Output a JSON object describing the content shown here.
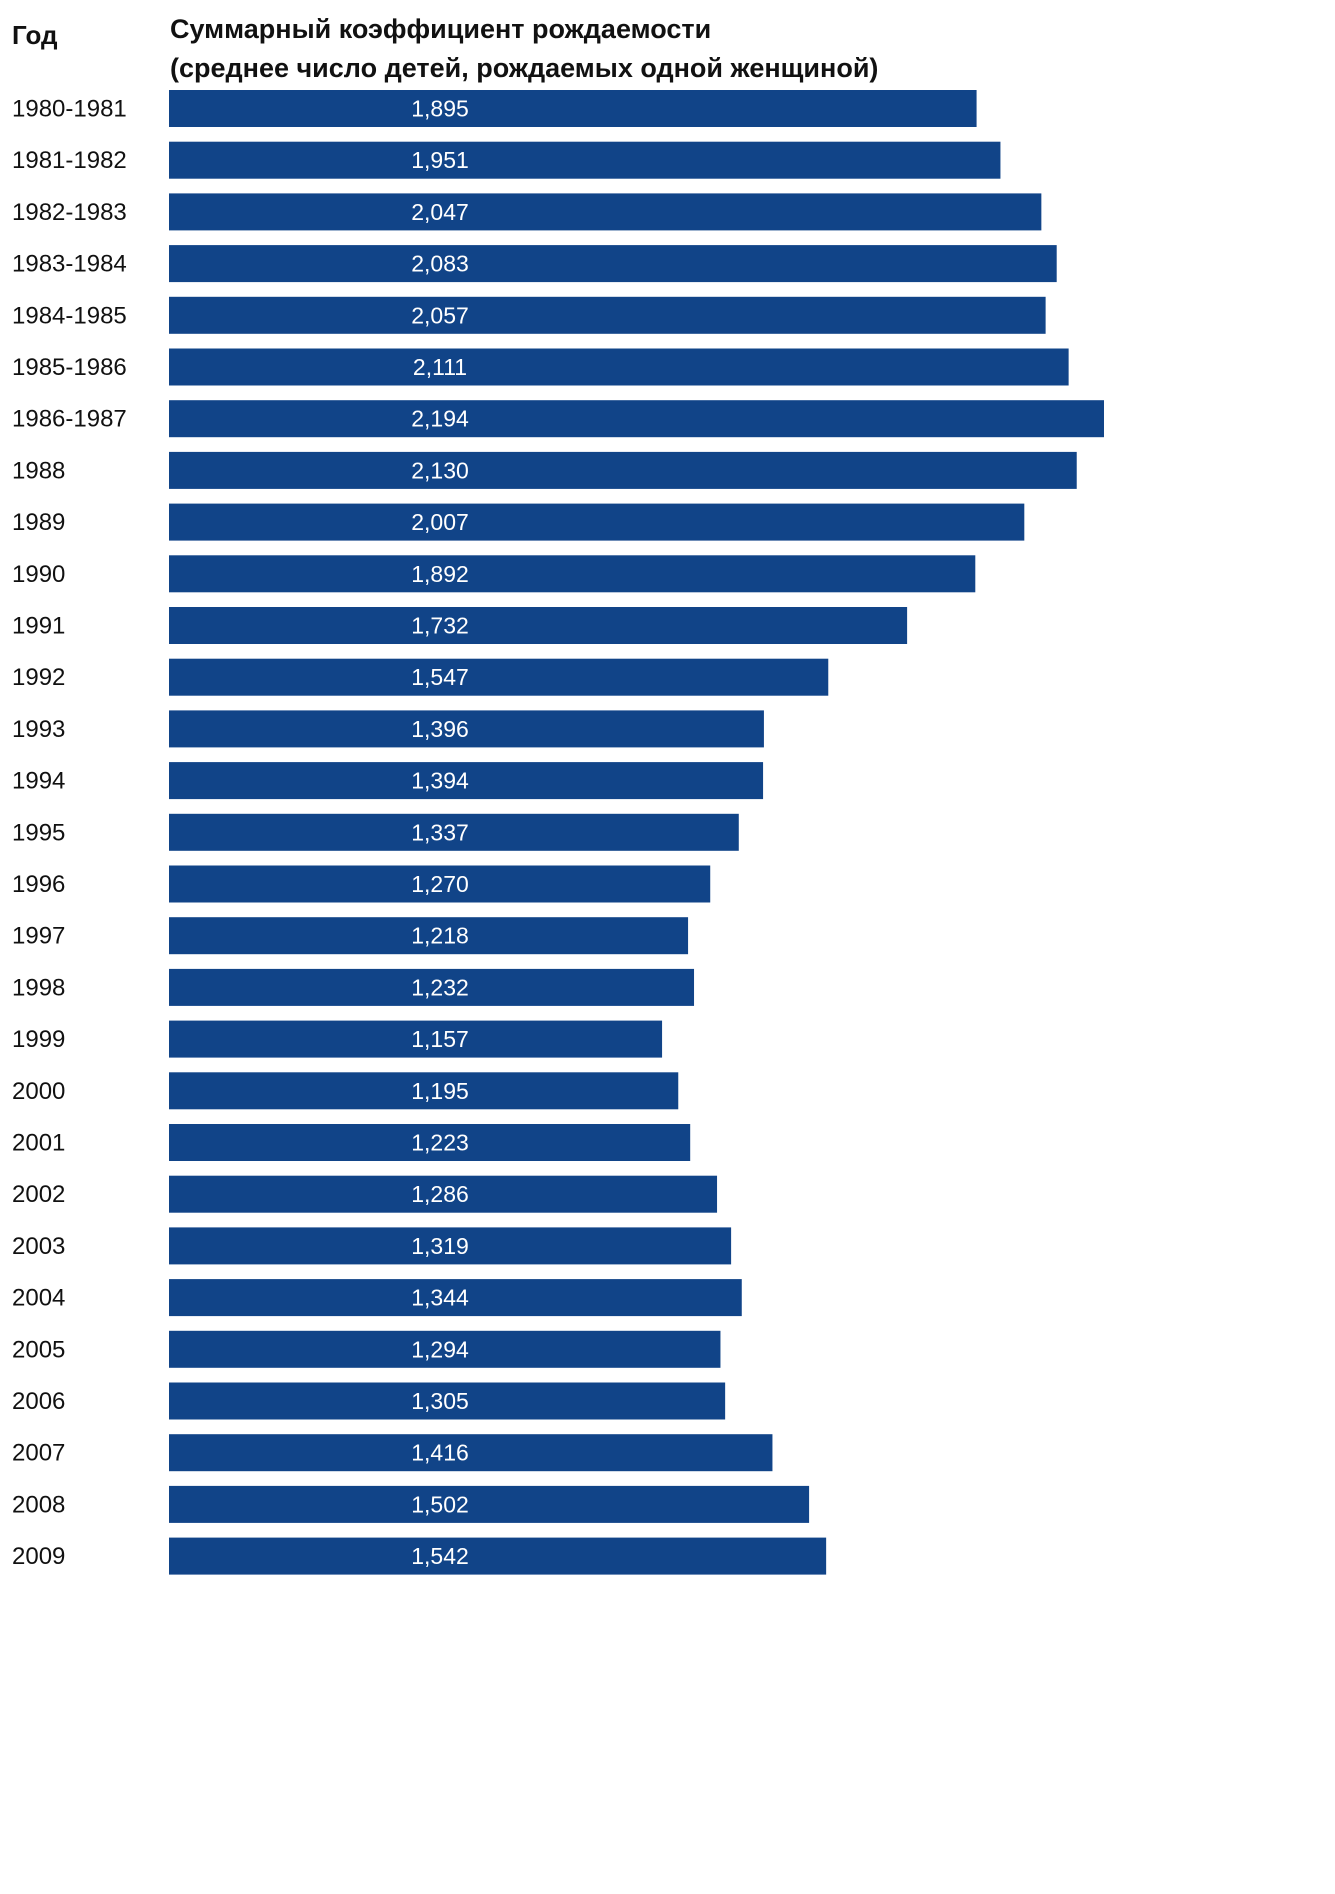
{
  "header": {
    "year_label": "Год",
    "title_line1": "Суммарный коэффициент рождаемости",
    "title_line2": "(среднее число детей, рождаемых одной женщиной)"
  },
  "chart_data": {
    "type": "bar",
    "orientation": "horizontal",
    "title": "Суммарный коэффициент рождаемости (среднее число детей, рождаемых одной женщиной)",
    "ylabel": "Год",
    "bar_color": "#114488",
    "categories": [
      "1980-1981",
      "1981-1982",
      "1982-1983",
      "1983-1984",
      "1984-1985",
      "1985-1986",
      "1986-1987",
      "1988",
      "1989",
      "1990",
      "1991",
      "1992",
      "1993",
      "1994",
      "1995",
      "1996",
      "1997",
      "1998",
      "1999",
      "2000",
      "2001",
      "2002",
      "2003",
      "2004",
      "2005",
      "2006",
      "2007",
      "2008",
      "2009"
    ],
    "values": [
      1.895,
      1.951,
      2.047,
      2.083,
      2.057,
      2.111,
      2.194,
      2.13,
      2.007,
      1.892,
      1.732,
      1.547,
      1.396,
      1.394,
      1.337,
      1.27,
      1.218,
      1.232,
      1.157,
      1.195,
      1.223,
      1.286,
      1.319,
      1.344,
      1.294,
      1.305,
      1.416,
      1.502,
      1.542
    ],
    "value_labels": [
      "1,895",
      "1,951",
      "2,047",
      "2,083",
      "2,057",
      "2,111",
      "2,194",
      "2,130",
      "2,007",
      "1,892",
      "1,732",
      "1,547",
      "1,396",
      "1,394",
      "1,337",
      "1,270",
      "1,218",
      "1,232",
      "1,157",
      "1,195",
      "1,223",
      "1,286",
      "1,319",
      "1,344",
      "1,294",
      "1,305",
      "1,416",
      "1,502",
      "1,542"
    ]
  }
}
